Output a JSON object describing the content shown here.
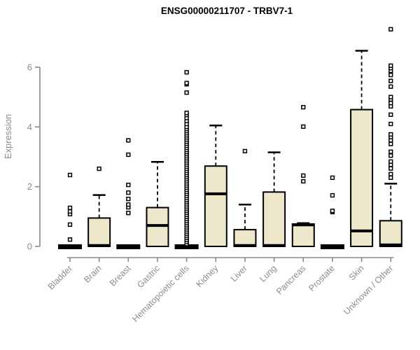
{
  "chart_data": {
    "type": "boxplot",
    "title": "ENSG00000211707 - TRBV7-1",
    "ylabel": "Expression",
    "xlabel": "",
    "ylim": [
      0,
      7.5
    ],
    "yticks": [
      0,
      2,
      4,
      6
    ],
    "legend": "none",
    "grid": false,
    "colors": {
      "box_fill": "#ede7cc",
      "box_stroke": "#000000",
      "axis": "#888888",
      "tick_label": "#8c8c8c",
      "title": "#000000"
    },
    "groups": [
      {
        "label": "Bladder",
        "collapsed": true,
        "q1": 0,
        "median": 0,
        "q3": 0,
        "whisker_low": 0,
        "whisker_high": 0,
        "outliers": [
          0.23,
          0.73,
          1.08,
          1.17,
          1.29,
          2.39
        ]
      },
      {
        "label": "Brain",
        "collapsed": false,
        "q1": 0,
        "median": 0.03,
        "q3": 0.95,
        "whisker_low": 0,
        "whisker_high": 1.72,
        "outliers": [
          2.6
        ]
      },
      {
        "label": "Breast",
        "collapsed": true,
        "q1": 0,
        "median": 0,
        "q3": 0,
        "whisker_low": 0,
        "whisker_high": 0,
        "outliers": [
          1.12,
          1.31,
          1.4,
          1.59,
          1.8,
          2.06,
          3.07,
          3.55
        ]
      },
      {
        "label": "Gastric",
        "collapsed": false,
        "q1": 0,
        "median": 0.7,
        "q3": 1.3,
        "whisker_low": 0,
        "whisker_high": 2.83,
        "outliers": []
      },
      {
        "label": "Hematopoietic cells",
        "collapsed": true,
        "q1": 0,
        "median": 0,
        "q3": 0,
        "whisker_low": 0,
        "whisker_high": 0,
        "outliers": [
          0.08,
          0.15,
          0.22,
          0.29,
          0.36,
          0.43,
          0.5,
          0.57,
          0.64,
          0.71,
          0.78,
          0.85,
          0.92,
          0.99,
          1.06,
          1.13,
          1.2,
          1.27,
          1.34,
          1.41,
          1.48,
          1.55,
          1.62,
          1.69,
          1.76,
          1.83,
          1.9,
          1.97,
          2.04,
          2.11,
          2.18,
          2.25,
          2.32,
          2.39,
          2.46,
          2.53,
          2.6,
          2.67,
          2.74,
          2.81,
          2.88,
          2.95,
          3.02,
          3.09,
          3.16,
          3.23,
          3.3,
          3.37,
          3.44,
          3.51,
          3.58,
          3.65,
          3.72,
          3.79,
          3.86,
          3.93,
          4.0,
          4.1,
          4.2,
          4.3,
          4.4,
          4.47,
          5.15,
          5.43,
          5.47,
          5.83
        ]
      },
      {
        "label": "Kidney",
        "collapsed": false,
        "q1": 0,
        "median": 1.76,
        "q3": 2.69,
        "whisker_low": 0,
        "whisker_high": 4.05,
        "outliers": []
      },
      {
        "label": "Liver",
        "collapsed": false,
        "q1": 0,
        "median": 0.03,
        "q3": 0.56,
        "whisker_low": 0,
        "whisker_high": 1.4,
        "outliers": [
          3.19
        ]
      },
      {
        "label": "Lung",
        "collapsed": false,
        "q1": 0,
        "median": 0.03,
        "q3": 1.82,
        "whisker_low": 0,
        "whisker_high": 3.15,
        "outliers": []
      },
      {
        "label": "Pancreas",
        "collapsed": false,
        "q1": 0,
        "median": 0.72,
        "q3": 0.75,
        "whisker_low": 0,
        "whisker_high": 0.78,
        "outliers": [
          2.18,
          2.37,
          4.01,
          4.66
        ]
      },
      {
        "label": "Prostate",
        "collapsed": true,
        "q1": 0,
        "median": 0,
        "q3": 0,
        "whisker_low": 0,
        "whisker_high": 0,
        "outliers": [
          1.15,
          1.19,
          1.71,
          2.3
        ]
      },
      {
        "label": "Skin",
        "collapsed": false,
        "q1": 0,
        "median": 0.52,
        "q3": 4.58,
        "whisker_low": 0,
        "whisker_high": 6.55,
        "outliers": []
      },
      {
        "label": "Unknown / Other",
        "collapsed": false,
        "q1": 0,
        "median": 0.05,
        "q3": 0.86,
        "whisker_low": 0,
        "whisker_high": 2.1,
        "outliers": [
          2.3,
          2.42,
          2.61,
          2.73,
          2.84,
          3.04,
          3.17,
          3.43,
          3.55,
          3.66,
          3.75,
          4.1,
          4.41,
          4.69,
          4.8,
          4.92,
          5.0,
          5.35,
          5.54,
          5.74,
          5.88,
          5.97,
          6.05,
          7.27
        ]
      }
    ]
  }
}
